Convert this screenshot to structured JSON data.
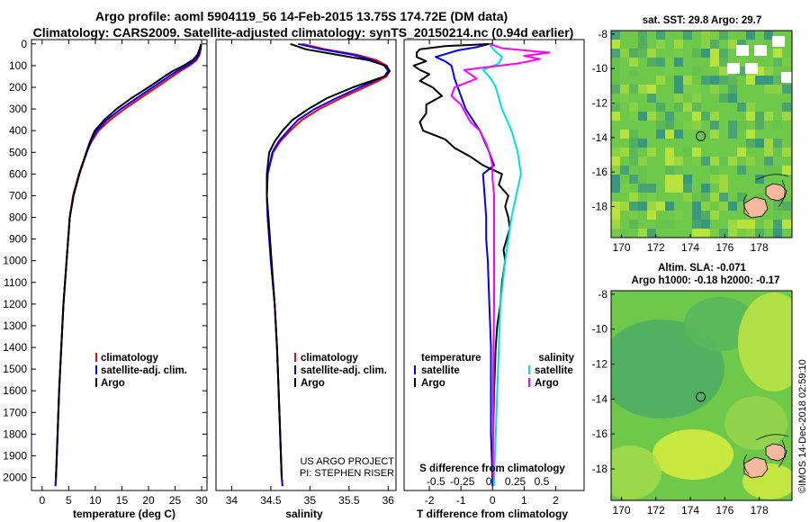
{
  "header": {
    "line1": "Argo profile: aoml 5904119_56 14-Feb-2015 13.75S 174.72E (DM data)",
    "line2": "Climatology: CARS2009. Satellite-adjusted climatology: synTS_20150214.nc (0.94d earlier)"
  },
  "colors": {
    "climatology": "#ff0000",
    "satellite": "#0000ff",
    "argo": "#000000",
    "satellite_salinity": "#00e0e0",
    "argo_salinity": "#ff00ff"
  },
  "depth_ticks": [
    "0",
    "100",
    "200",
    "300",
    "400",
    "500",
    "600",
    "700",
    "800",
    "900",
    "1000",
    "1100",
    "1200",
    "1300",
    "1400",
    "1500",
    "1600",
    "1700",
    "1800",
    "1900",
    "2000"
  ],
  "chart_data": [
    {
      "type": "line",
      "id": "temperature",
      "xlabel": "temperature (deg C)",
      "xlim": [
        -2,
        31
      ],
      "ylim": [
        2060,
        -20
      ],
      "xticks": [
        0,
        5,
        10,
        15,
        20,
        25,
        30
      ],
      "xtick_labels": [
        "0",
        "5",
        "10",
        "15",
        "20",
        "25",
        "30"
      ],
      "legend": {
        "items": [
          "climatology",
          "satellite-adj. clim.",
          "Argo"
        ]
      },
      "series": [
        {
          "name": "climatology",
          "color": "#ff0000",
          "depth": [
            0,
            25,
            50,
            75,
            100,
            125,
            150,
            175,
            200,
            250,
            300,
            350,
            400,
            450,
            500,
            600,
            700,
            800,
            1000,
            1200,
            1400,
            1600,
            1800,
            2000,
            2040
          ],
          "values": [
            29.9,
            29.8,
            29.6,
            29,
            27.7,
            26,
            24.5,
            23,
            21.5,
            18.5,
            15.5,
            12.8,
            10.6,
            9.3,
            8.3,
            6.9,
            5.8,
            5.2,
            4.6,
            4,
            3.6,
            3.2,
            2.9,
            2.6,
            2.5
          ]
        },
        {
          "name": "satellite-adj. clim.",
          "color": "#0000ff",
          "depth": [
            0,
            25,
            50,
            75,
            100,
            125,
            150,
            175,
            200,
            250,
            300,
            350,
            400,
            450,
            500,
            600,
            700,
            800,
            1000,
            1200,
            1400,
            1600,
            1800,
            2000,
            2040
          ],
          "values": [
            29.9,
            29.8,
            29.5,
            28.8,
            27.3,
            25.4,
            23.8,
            22.3,
            20.8,
            17.8,
            14.8,
            12.2,
            10.3,
            9.2,
            8.4,
            7,
            5.9,
            5.2,
            4.6,
            4,
            3.6,
            3.2,
            2.9,
            2.6,
            2.5
          ]
        },
        {
          "name": "Argo",
          "color": "#000000",
          "depth": [
            0,
            25,
            50,
            75,
            100,
            125,
            150,
            175,
            200,
            250,
            300,
            350,
            400,
            450,
            500,
            600,
            700,
            800,
            1000,
            1200,
            1400,
            1600,
            1800,
            2000
          ],
          "values": [
            29.9,
            29.6,
            29.2,
            28.3,
            26.6,
            24.6,
            23,
            21.5,
            20,
            16.8,
            14,
            11.7,
            9.9,
            9,
            8.3,
            7,
            5.9,
            5.2,
            4.6,
            4,
            3.6,
            3.2,
            2.9,
            2.6
          ]
        }
      ]
    },
    {
      "type": "line",
      "id": "salinity",
      "xlabel": "salinity",
      "xlim": [
        33.8,
        36.1
      ],
      "ylim": [
        2060,
        -20
      ],
      "xticks": [
        34,
        34.5,
        35,
        35.5,
        36
      ],
      "xtick_labels": [
        "34",
        "34.5",
        "35",
        "35.5",
        "36"
      ],
      "legend": {
        "items": [
          "climatology",
          "satellite-adj. clim.",
          "Argo"
        ]
      },
      "annotations": [
        "US ARGO PROJECT",
        "PI: STEPHEN RISER"
      ],
      "series": [
        {
          "name": "climatology",
          "color": "#ff0000",
          "depth": [
            0,
            25,
            50,
            75,
            100,
            125,
            150,
            175,
            200,
            250,
            300,
            350,
            400,
            450,
            500,
            600,
            700,
            800,
            1000,
            1200,
            1400,
            1600,
            1800,
            2000,
            2040
          ],
          "values": [
            34.9,
            35.2,
            35.6,
            35.85,
            35.98,
            36.02,
            35.98,
            35.85,
            35.7,
            35.4,
            35.12,
            34.9,
            34.75,
            34.62,
            34.53,
            34.46,
            34.45,
            34.46,
            34.5,
            34.55,
            34.58,
            34.6,
            34.62,
            34.64,
            34.65
          ]
        },
        {
          "name": "satellite-adj. clim.",
          "color": "#0000ff",
          "depth": [
            0,
            25,
            50,
            75,
            100,
            125,
            150,
            175,
            200,
            250,
            300,
            350,
            400,
            450,
            500,
            600,
            700,
            800,
            1000,
            1200,
            1400,
            1600,
            1800,
            2000,
            2040
          ],
          "values": [
            34.85,
            35.15,
            35.55,
            35.8,
            35.95,
            36,
            35.95,
            35.8,
            35.64,
            35.34,
            35.06,
            34.85,
            34.72,
            34.6,
            34.52,
            34.46,
            34.45,
            34.46,
            34.5,
            34.55,
            34.58,
            34.6,
            34.62,
            34.64,
            34.65
          ]
        },
        {
          "name": "Argo",
          "color": "#000000",
          "depth": [
            0,
            25,
            50,
            75,
            100,
            125,
            150,
            175,
            200,
            250,
            300,
            350,
            400,
            450,
            500,
            600,
            700,
            800,
            1000,
            1200,
            1400,
            1600,
            1800,
            2000
          ],
          "values": [
            34.75,
            34.95,
            35.35,
            35.75,
            35.97,
            36.02,
            35.95,
            35.75,
            35.55,
            35.22,
            34.98,
            34.78,
            34.65,
            34.55,
            34.48,
            34.45,
            34.45,
            34.47,
            34.51,
            34.55,
            34.58,
            34.6,
            34.62,
            34.64
          ]
        }
      ]
    },
    {
      "type": "line",
      "id": "difference",
      "xlabel": "T difference from climatology",
      "xlabel_top": "S difference from climatology",
      "xlim": [
        -2.8,
        2.9
      ],
      "ylim": [
        2060,
        -20
      ],
      "xticks": [
        -2,
        -1,
        0,
        1,
        2
      ],
      "xtick_labels": [
        "-2",
        "-1",
        "0",
        "1",
        "2"
      ],
      "top_ticks": [
        -0.5,
        -0.25,
        0,
        0.25,
        0.5
      ],
      "top_tick_labels": [
        "-0.5",
        "-0.25",
        "0",
        "0.25",
        "0.5"
      ],
      "legend": {
        "left_header": "temperature",
        "left_items": [
          "satellite",
          "Argo"
        ],
        "right_header": "salinity",
        "right_items": [
          "satellite",
          "Argo"
        ]
      },
      "series": [
        {
          "name": "T satellite",
          "color": "#0000ff",
          "depth": [
            0,
            15,
            30,
            60,
            80,
            100,
            130,
            160,
            200,
            300,
            400,
            500,
            560,
            600,
            700,
            800,
            900,
            1000,
            1200,
            1400,
            1600,
            1800,
            2000,
            2040
          ],
          "values": [
            -0.1,
            -0.5,
            -1.1,
            -1.8,
            -1.5,
            -1.3,
            -1.25,
            -1.2,
            -1.1,
            -0.85,
            -0.4,
            -0.1,
            0.05,
            -0.3,
            -0.25,
            -0.2,
            -0.2,
            -0.15,
            -0.1,
            -0.05,
            -0.05,
            -0.05,
            0,
            0
          ]
        },
        {
          "name": "T Argo",
          "color": "#000000",
          "depth": [
            0,
            10,
            25,
            40,
            60,
            80,
            100,
            120,
            140,
            170,
            200,
            240,
            280,
            320,
            360,
            400,
            440,
            480,
            520,
            560,
            600,
            650,
            700,
            750,
            800,
            850,
            900,
            950,
            1000,
            1100,
            1200,
            1300,
            1400,
            1600,
            1800,
            2000
          ],
          "values": [
            0,
            -1.5,
            -2.3,
            -2.4,
            -2.4,
            -2.1,
            -2.5,
            -2.3,
            -2,
            -2.3,
            -1.9,
            -1.6,
            -2.1,
            -2.1,
            -2.3,
            -2.2,
            -1.5,
            -1.2,
            -0.7,
            -0.3,
            0.3,
            0.2,
            0.5,
            0.4,
            0.5,
            0.55,
            0.45,
            0.35,
            0.4,
            0.3,
            0.25,
            0.15,
            0.1,
            0.05,
            0.02,
            0
          ]
        },
        {
          "name": "S satellite",
          "color": "#00e0e0",
          "depth": [
            0,
            30,
            60,
            90,
            120,
            160,
            200,
            300,
            400,
            500,
            600,
            800,
            1000,
            1200,
            1400,
            1600,
            1800,
            2000,
            2040
          ],
          "values": [
            -0.1,
            0.05,
            0.3,
            0.2,
            -0.3,
            -0.05,
            0.1,
            0.3,
            0.6,
            0.8,
            0.9,
            0.6,
            0.4,
            0.25,
            0.2,
            0.15,
            0.1,
            0.05,
            0.05
          ]
        },
        {
          "name": "S Argo",
          "color": "#ff00ff",
          "depth": [
            0,
            20,
            40,
            55,
            70,
            90,
            120,
            160,
            200,
            240,
            280,
            320,
            360,
            400,
            430,
            460,
            500,
            560,
            620,
            700,
            800,
            1000,
            1200,
            1400,
            1600,
            1800,
            2000
          ],
          "values": [
            -0.1,
            0.3,
            1.8,
            1,
            1.5,
            0.8,
            -0.9,
            -0.5,
            -1.2,
            -1.3,
            -1,
            -0.85,
            -0.7,
            -0.4,
            -0.3,
            -0.2,
            -0.1,
            0,
            0,
            0.05,
            0.05,
            0.05,
            0.05,
            0.03,
            0.02,
            0.02,
            0.02
          ]
        }
      ]
    }
  ],
  "maps": {
    "top": {
      "title": "sat. SST: 29.8  Argo: 29.7",
      "xticks": [
        "170",
        "172",
        "174",
        "176",
        "178"
      ],
      "yticks": [
        "-8",
        "-10",
        "-12",
        "-14",
        "-16",
        "-18"
      ],
      "profile_lon": 174.72,
      "profile_lat": -13.75
    },
    "bottom": {
      "title1": "Altim. SLA: -0.071",
      "title2": "Argo h1000: -0.18 h2000: -0.17",
      "xticks": [
        "170",
        "172",
        "174",
        "176",
        "178"
      ],
      "yticks": [
        "-8",
        "-10",
        "-12",
        "-14",
        "-16",
        "-18"
      ],
      "profile_lon": 174.72,
      "profile_lat": -13.75
    },
    "credit": "©IMOS 14-Dec-2018 02:59:10"
  }
}
